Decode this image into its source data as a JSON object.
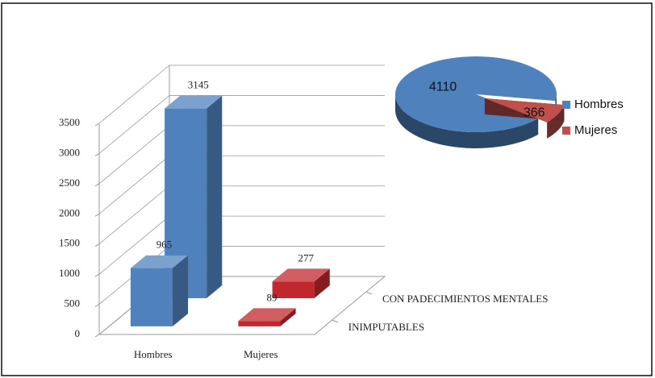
{
  "chart_data": [
    {
      "type": "bar3d",
      "categories": [
        "Hombres",
        "Mujeres"
      ],
      "series": [
        {
          "name": "INIMPUTABLES",
          "values": [
            965,
            89
          ]
        },
        {
          "name": "CON PADECIMIENTOS MENTALES",
          "values": [
            3145,
            277
          ]
        }
      ],
      "colors": [
        "#4f81bd",
        "#c0282e"
      ],
      "ylim": [
        0,
        3500
      ],
      "yticks": [
        0,
        500,
        1000,
        1500,
        2000,
        2500,
        3000,
        3500
      ],
      "grid": true
    },
    {
      "type": "pie3d",
      "categories": [
        "Hombres",
        "Mujeres"
      ],
      "values": [
        4110,
        366
      ],
      "colors": [
        "#4f81bd",
        "#c0504d"
      ],
      "legend": "right"
    }
  ]
}
